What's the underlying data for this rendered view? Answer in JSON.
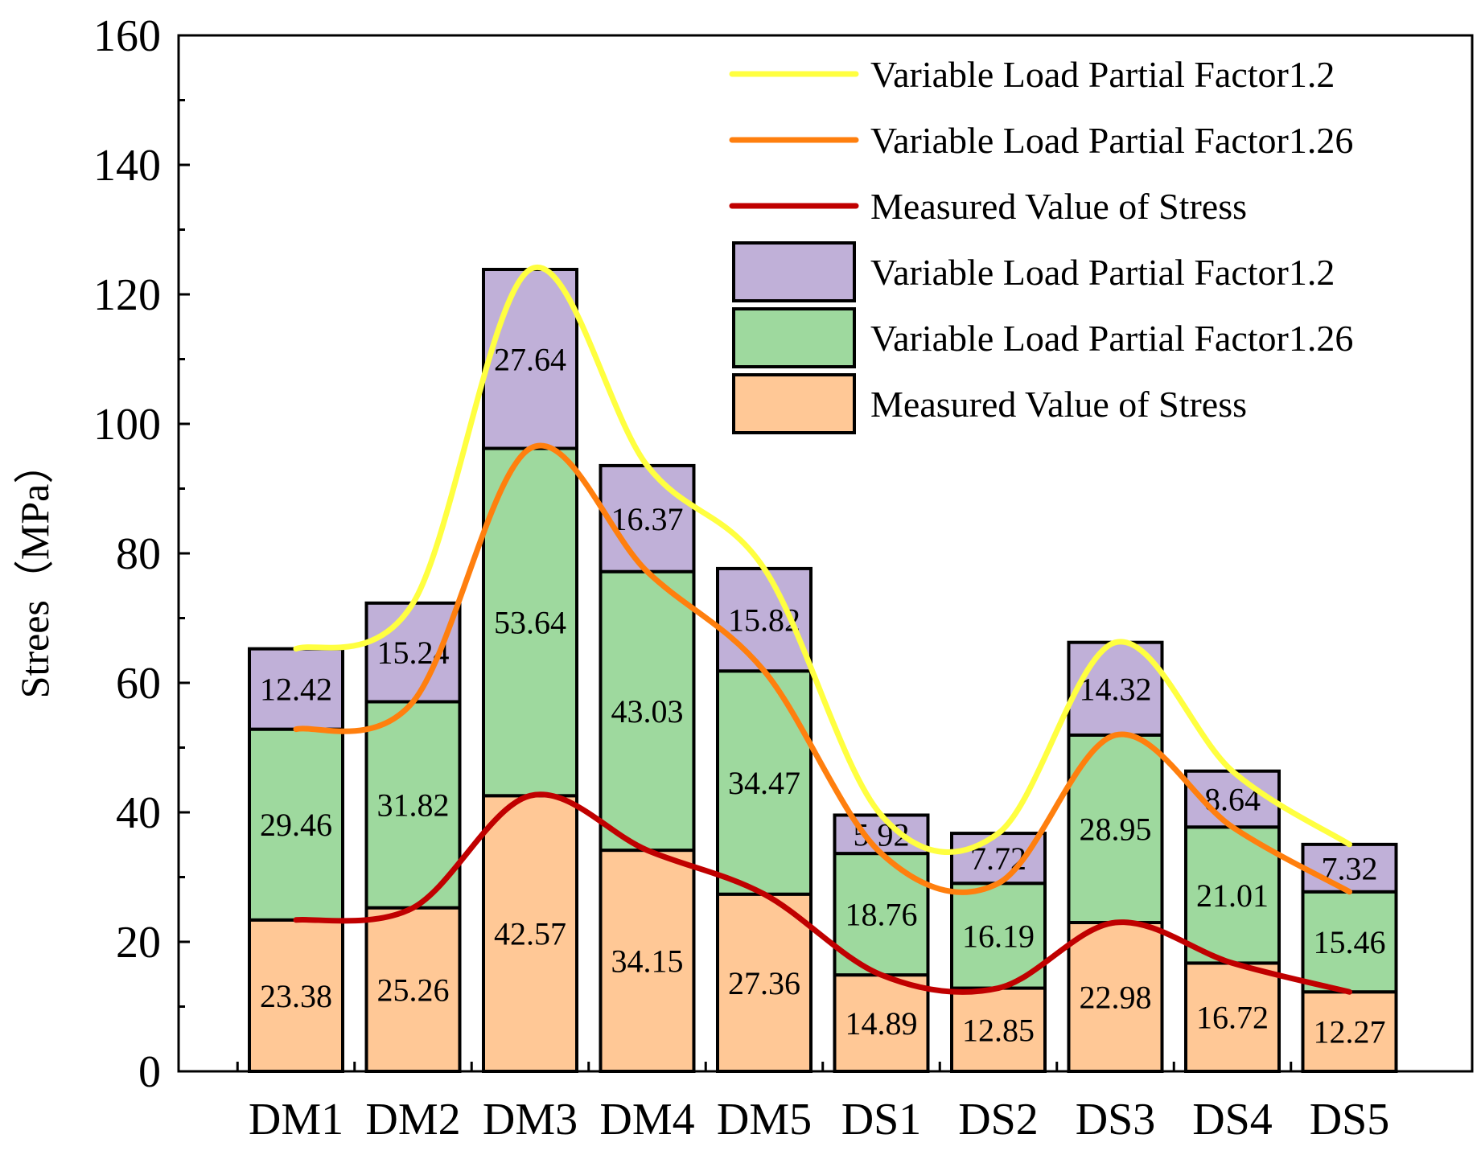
{
  "chart_data": {
    "type": "bar",
    "stacked": true,
    "categories": [
      "DM1",
      "DM2",
      "DM3",
      "DM4",
      "DM5",
      "DS1",
      "DS2",
      "DS3",
      "DS4",
      "DS5"
    ],
    "series": [
      {
        "name": "Measured Value of Stress",
        "color": "#FFC896",
        "values": [
          23.38,
          25.26,
          42.57,
          34.15,
          27.36,
          14.89,
          12.85,
          22.98,
          16.72,
          12.27
        ],
        "labels": [
          "23.38",
          "25.26",
          "42.57",
          "34.15",
          "27.36",
          "14.89",
          "12.85",
          "22.98",
          "16.72",
          "12.27"
        ]
      },
      {
        "name": "Variable Load Partial Factor1.26",
        "color": "#9ED99E",
        "values": [
          29.46,
          31.82,
          53.64,
          43.03,
          34.47,
          18.76,
          16.19,
          28.95,
          21.01,
          15.46
        ],
        "labels": [
          "29.46",
          "31.82",
          "53.64",
          "43.03",
          "34.47",
          "18.76",
          "16.19",
          "28.95",
          "21.01",
          "15.46"
        ]
      },
      {
        "name": "Variable Load Partial Factor1.2",
        "color": "#C0B0D8",
        "values": [
          12.42,
          15.24,
          27.64,
          16.37,
          15.82,
          5.92,
          7.72,
          14.32,
          8.64,
          7.32
        ],
        "labels": [
          "12.42",
          "15.24",
          "27.64",
          "16.37",
          "15.82",
          "5.92",
          "7.72",
          "14.32",
          "8.64",
          "7.32"
        ]
      }
    ],
    "lines": [
      {
        "name": "Variable Load Partial Factor1.2",
        "color": "#FFFF40",
        "basis": "cumulative top of all three segments"
      },
      {
        "name": "Variable Load Partial Factor1.26",
        "color": "#FF7F0E",
        "basis": "cumulative top of first two segments"
      },
      {
        "name": "Measured Value of Stress",
        "color": "#C00000",
        "basis": "top of first segment"
      }
    ],
    "legend_order": [
      {
        "kind": "line",
        "ref": 0,
        "label": "Variable Load Partial Factor1.2"
      },
      {
        "kind": "line",
        "ref": 1,
        "label": "Variable Load Partial Factor1.26"
      },
      {
        "kind": "line",
        "ref": 2,
        "label": "Measured Value of Stress"
      },
      {
        "kind": "box",
        "ref": 2,
        "label": "Variable Load Partial Factor1.2"
      },
      {
        "kind": "box",
        "ref": 1,
        "label": "Variable Load Partial Factor1.26"
      },
      {
        "kind": "box",
        "ref": 0,
        "label": "Measured Value of Stress"
      }
    ],
    "ylabel": "Strees（MPa）",
    "xlabel": "",
    "title": "",
    "ylim": [
      0,
      160
    ],
    "yticks": [
      0,
      20,
      40,
      60,
      80,
      100,
      120,
      140,
      160
    ],
    "ytick_labels": [
      "0",
      "20",
      "40",
      "60",
      "80",
      "100",
      "120",
      "140",
      "160"
    ],
    "legend_position": "top-right",
    "grid": false
  }
}
